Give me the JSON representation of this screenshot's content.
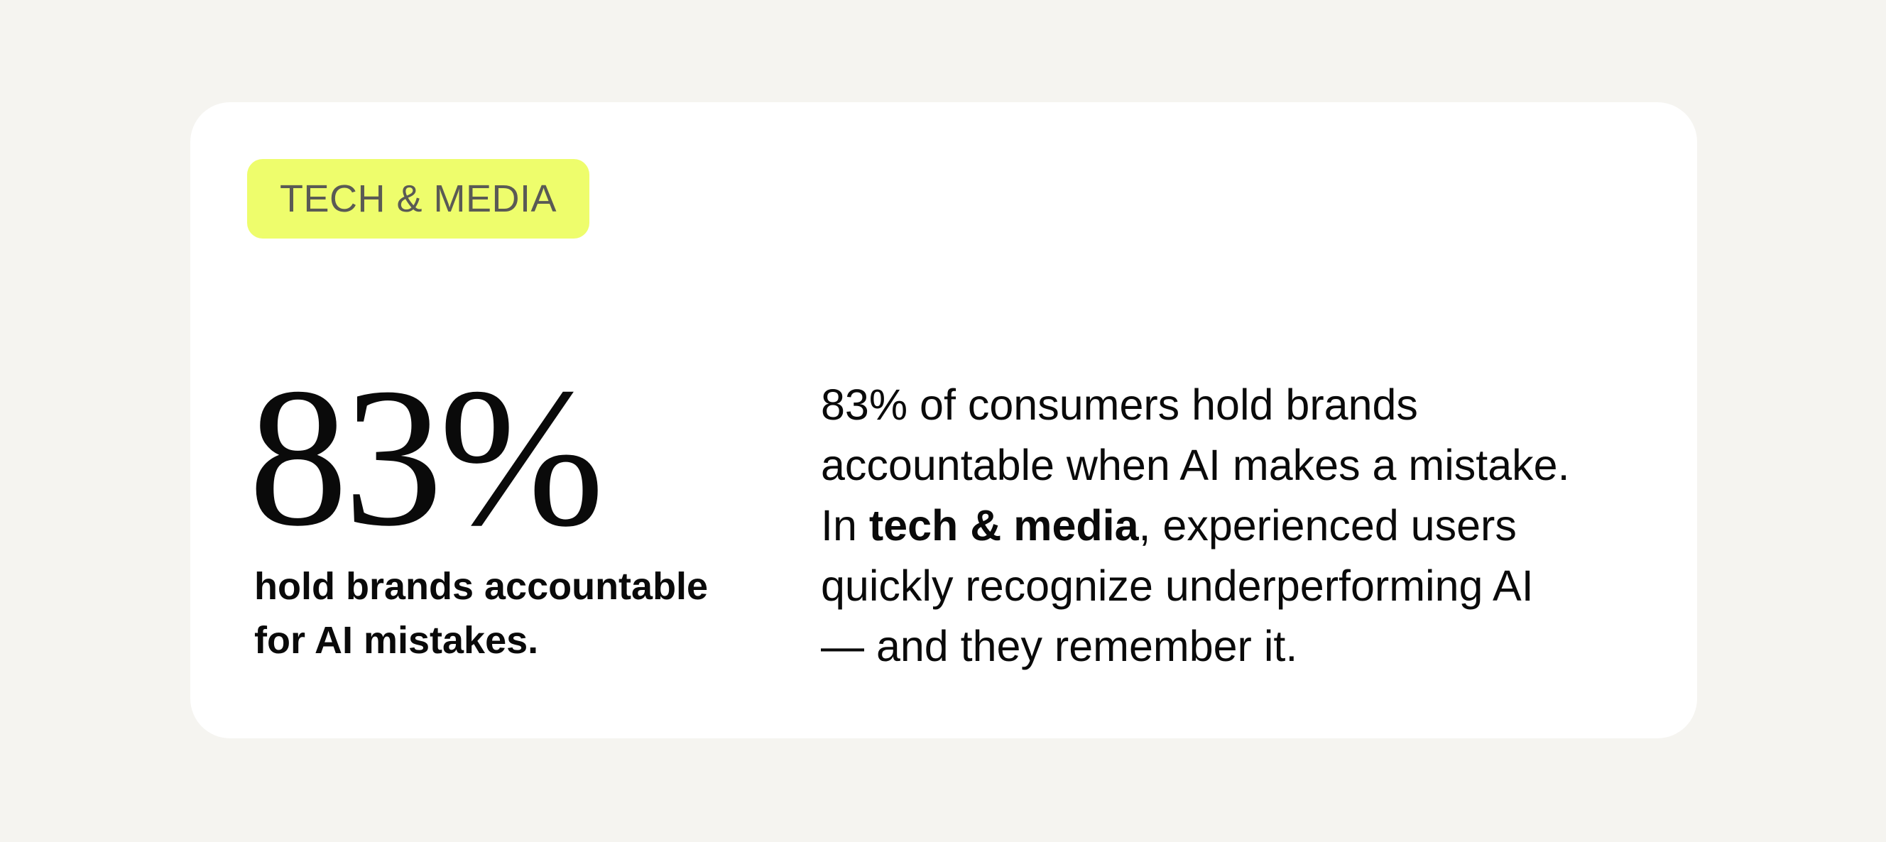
{
  "card": {
    "tag_label": "TECH & MEDIA",
    "stat_value": "83%",
    "stat_caption_line1": "hold brands accountable",
    "stat_caption_line2": "for AI mistakes.",
    "body": {
      "line1": "83% of consumers hold brands",
      "line2": "accountable when AI makes a mistake.",
      "line3_prefix": "In ",
      "line3_bold": "tech & media",
      "line3_suffix": ", experienced users",
      "line4": "quickly recognize underperforming AI",
      "line5": "— and they remember it."
    }
  },
  "colors": {
    "page_background": "#f5f4f0",
    "card_background": "#ffffff",
    "tag_background": "#eefd6c",
    "tag_text": "#5a5a55",
    "text": "#0a0a0a"
  }
}
